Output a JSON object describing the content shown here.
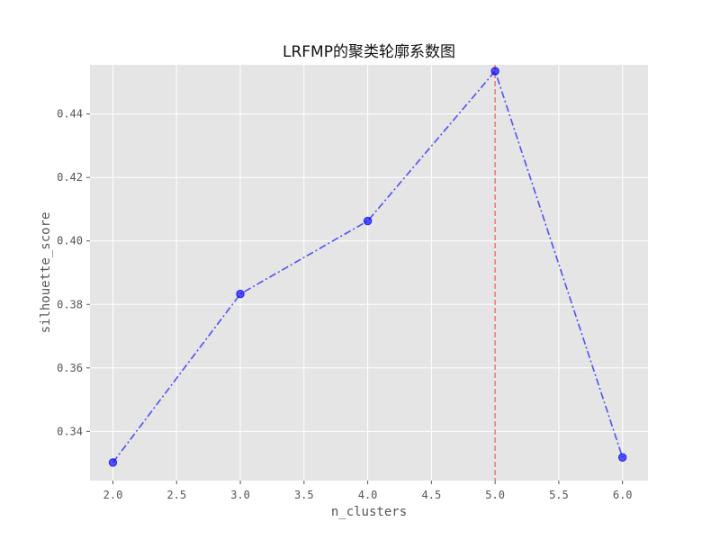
{
  "chart_data": {
    "type": "line",
    "title": "LRFMP的聚类轮廓系数图",
    "xlabel": "n_clusters",
    "ylabel": "silhouette_score",
    "x": [
      2,
      3,
      4,
      5,
      6
    ],
    "series": [
      {
        "values": [
          0.3302,
          0.3833,
          0.4063,
          0.4535,
          0.3318
        ],
        "color": "#0000ff",
        "line_style": "dash-dot",
        "marker": "circle"
      }
    ],
    "xlim": [
      1.82,
      6.2
    ],
    "ylim": [
      0.3245,
      0.4555
    ],
    "x_ticks": [
      2.0,
      2.5,
      3.0,
      3.5,
      4.0,
      4.5,
      5.0,
      5.5,
      6.0
    ],
    "x_tick_labels": [
      "2.0",
      "2.5",
      "3.0",
      "3.5",
      "4.0",
      "4.5",
      "5.0",
      "5.5",
      "6.0"
    ],
    "y_ticks": [
      0.34,
      0.36,
      0.38,
      0.4,
      0.42,
      0.44
    ],
    "y_tick_labels": [
      "0.34",
      "0.36",
      "0.38",
      "0.40",
      "0.42",
      "0.44"
    ],
    "vline": {
      "x": 5,
      "color": "#ff0000",
      "style": "dashed"
    },
    "grid": true,
    "background": "#e5e5e5"
  }
}
